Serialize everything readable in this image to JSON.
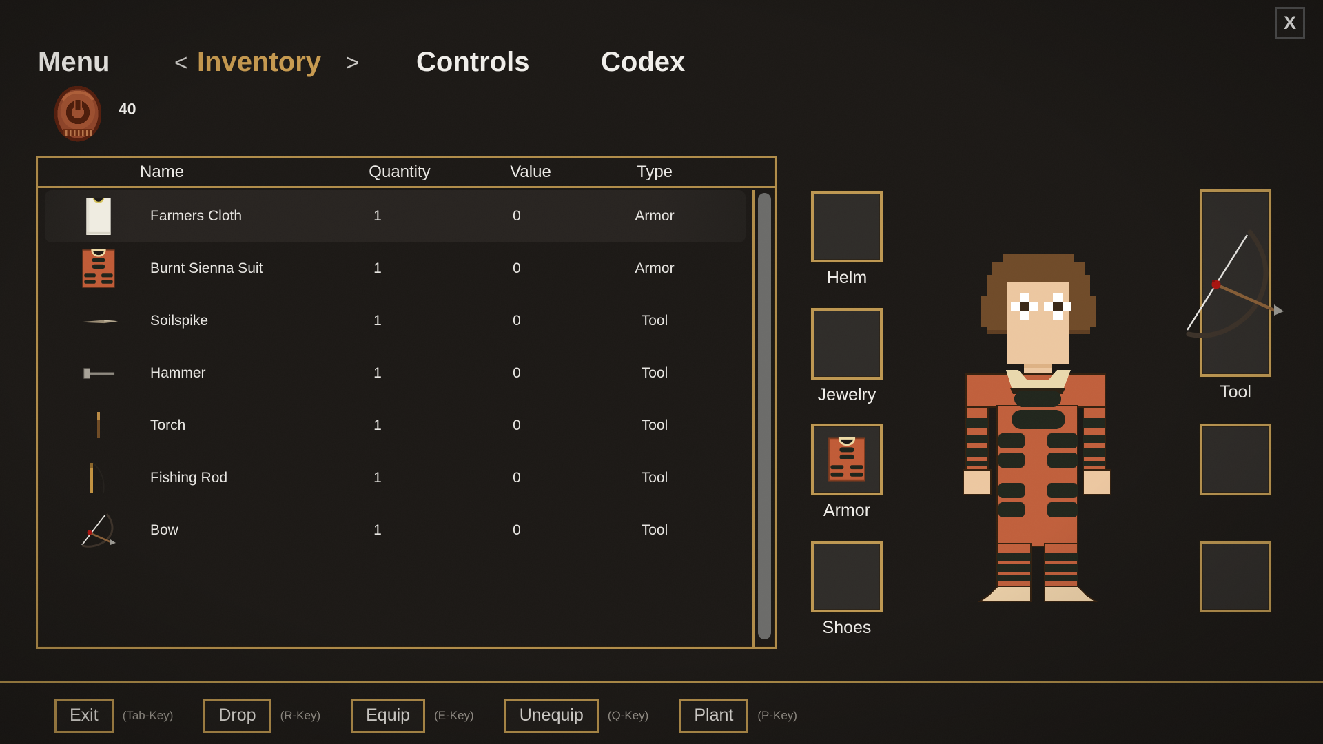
{
  "window": {
    "close_label": "X"
  },
  "nav": {
    "prev_arrow": "<",
    "next_arrow": ">",
    "items": [
      {
        "label": "Menu",
        "active": false
      },
      {
        "label": "Inventory",
        "active": true
      },
      {
        "label": "Controls",
        "active": false
      },
      {
        "label": "Codex",
        "active": false
      }
    ]
  },
  "currency": {
    "icon": "coin",
    "amount": "40"
  },
  "inventory_table": {
    "columns": [
      "Name",
      "Quantity",
      "Value",
      "Type"
    ],
    "rows": [
      {
        "icon": "farmers-cloth",
        "name": "Farmers Cloth",
        "quantity": "1",
        "value": "0",
        "type": "Armor",
        "selected": true
      },
      {
        "icon": "burnt-sienna-suit",
        "name": "Burnt Sienna Suit",
        "quantity": "1",
        "value": "0",
        "type": "Armor",
        "selected": false
      },
      {
        "icon": "soilspike",
        "name": "Soilspike",
        "quantity": "1",
        "value": "0",
        "type": "Tool",
        "selected": false
      },
      {
        "icon": "hammer",
        "name": "Hammer",
        "quantity": "1",
        "value": "0",
        "type": "Tool",
        "selected": false
      },
      {
        "icon": "torch",
        "name": "Torch",
        "quantity": "1",
        "value": "0",
        "type": "Tool",
        "selected": false
      },
      {
        "icon": "fishing-rod",
        "name": "Fishing Rod",
        "quantity": "1",
        "value": "0",
        "type": "Tool",
        "selected": false
      },
      {
        "icon": "bow",
        "name": "Bow",
        "quantity": "1",
        "value": "0",
        "type": "Tool",
        "selected": false
      }
    ]
  },
  "equipment": {
    "left_slots": [
      {
        "label": "Helm",
        "item": null,
        "tall": false
      },
      {
        "label": "Jewelry",
        "item": null,
        "tall": false
      },
      {
        "label": "Armor",
        "item": "burnt-sienna-suit",
        "tall": false
      },
      {
        "label": "Shoes",
        "item": null,
        "tall": false
      }
    ],
    "right_slots": [
      {
        "label": "Tool",
        "item": "bow",
        "tall": true
      },
      {
        "label": "",
        "item": null,
        "tall": false
      },
      {
        "label": "",
        "item": null,
        "tall": false
      }
    ]
  },
  "actions": [
    {
      "label": "Exit",
      "key_hint": "(Tab-Key)"
    },
    {
      "label": "Drop",
      "key_hint": "(R-Key)"
    },
    {
      "label": "Equip",
      "key_hint": "(E-Key)"
    },
    {
      "label": "Unequip",
      "key_hint": "(Q-Key)"
    },
    {
      "label": "Plant",
      "key_hint": "(P-Key)"
    }
  ],
  "colors": {
    "background": "#1b1815",
    "gold": "#b08c49",
    "gold_text": "#c79a4f",
    "text_primary": "#f0eeea",
    "text_secondary": "#97928a",
    "slot_bg": "#2e2b28",
    "row_highlight": "#272320",
    "scroll_thumb": "#6b6b69"
  }
}
